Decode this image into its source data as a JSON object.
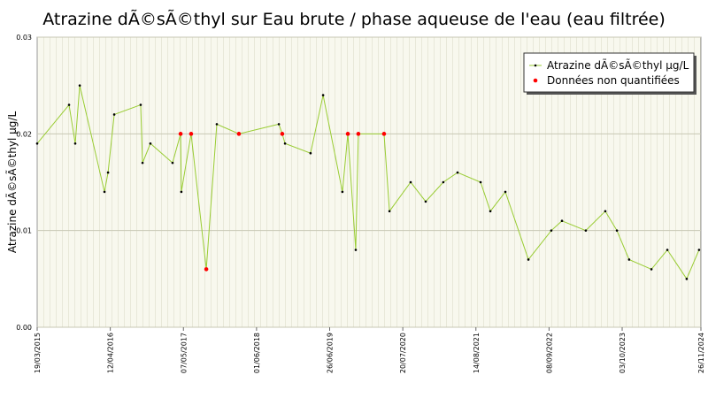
{
  "chart_data": {
    "type": "line",
    "title": "Atrazine dÃ©sÃ©thyl sur Eau brute / phase aqueuse de l'eau (eau filtrée)",
    "y_label": "Atrazine dÃ©sÃ©thyl µg/L",
    "x": [
      "2015-03-19",
      "2015-09-05",
      "2015-10-08",
      "2015-11-01",
      "2016-03-12",
      "2016-03-31",
      "2016-05-03",
      "2016-09-21",
      "2016-10-01",
      "2016-11-12",
      "2017-03-10",
      "2017-04-22",
      "2017-04-26",
      "2017-06-17",
      "2017-09-06",
      "2017-11-01",
      "2018-02-27",
      "2018-09-28",
      "2018-10-16",
      "2018-10-31",
      "2019-03-16",
      "2019-05-22",
      "2019-09-02",
      "2019-10-01",
      "2019-11-12",
      "2019-11-26",
      "2020-04-11",
      "2020-05-10",
      "2020-08-31",
      "2020-11-19",
      "2021-02-21",
      "2021-05-08",
      "2021-09-08",
      "2021-10-30",
      "2022-01-18",
      "2022-05-21",
      "2022-09-20",
      "2022-11-16",
      "2023-03-23",
      "2023-07-05",
      "2023-09-05",
      "2023-11-09",
      "2024-03-07",
      "2024-05-31",
      "2024-09-11",
      "2024-11-16"
    ],
    "series": [
      {
        "name": "Atrazine dÃ©sÃ©thyl µg/L",
        "color": "#99cc33",
        "marker_color": "#000000",
        "values": [
          0.019,
          0.023,
          0.019,
          0.025,
          0.014,
          0.016,
          0.022,
          0.023,
          0.017,
          0.019,
          0.017,
          0.02,
          0.014,
          0.02,
          0.006,
          0.021,
          0.02,
          0.021,
          0.02,
          0.019,
          0.018,
          0.024,
          0.014,
          0.02,
          0.008,
          0.02,
          0.02,
          0.012,
          0.015,
          0.013,
          0.015,
          0.016,
          0.015,
          0.012,
          0.014,
          0.007,
          0.01,
          0.011,
          0.01,
          0.012,
          0.01,
          0.007,
          0.006,
          0.008,
          0.005,
          0.008
        ]
      },
      {
        "name": "Données non quantifiées",
        "color": "#ff0000",
        "marker_color": "#ff0000",
        "values": [
          null,
          null,
          null,
          null,
          null,
          null,
          null,
          null,
          null,
          null,
          null,
          0.02,
          null,
          0.02,
          0.006,
          null,
          0.02,
          null,
          0.02,
          null,
          null,
          null,
          null,
          0.02,
          null,
          0.02,
          0.02,
          null,
          null,
          null,
          null,
          null,
          null,
          null,
          null,
          null,
          null,
          null,
          null,
          null,
          null,
          null,
          null,
          null,
          null,
          null
        ]
      }
    ],
    "xlim": [
      "2015-03-19",
      "2024-11-26"
    ],
    "xticks": [
      {
        "value": "2015-03-19",
        "label": "19/03/2015"
      },
      {
        "value": "2016-04-12",
        "label": "12/04/2016"
      },
      {
        "value": "2017-05-07",
        "label": "07/05/2017"
      },
      {
        "value": "2018-06-01",
        "label": "01/06/2018"
      },
      {
        "value": "2019-06-26",
        "label": "26/06/2019"
      },
      {
        "value": "2020-07-20",
        "label": "20/07/2020"
      },
      {
        "value": "2021-08-14",
        "label": "14/08/2021"
      },
      {
        "value": "2022-09-08",
        "label": "08/09/2022"
      },
      {
        "value": "2023-10-03",
        "label": "03/10/2023"
      },
      {
        "value": "2024-11-26",
        "label": "26/11/2024"
      }
    ],
    "ylim": [
      0,
      0.03
    ],
    "yticks": [
      {
        "value": 0,
        "label": "0.00"
      },
      {
        "value": 0.01,
        "label": "0.01"
      },
      {
        "value": 0.02,
        "label": "0.02"
      },
      {
        "value": 0.03,
        "label": "0.03"
      }
    ],
    "grid": true,
    "legend": "upper right"
  }
}
